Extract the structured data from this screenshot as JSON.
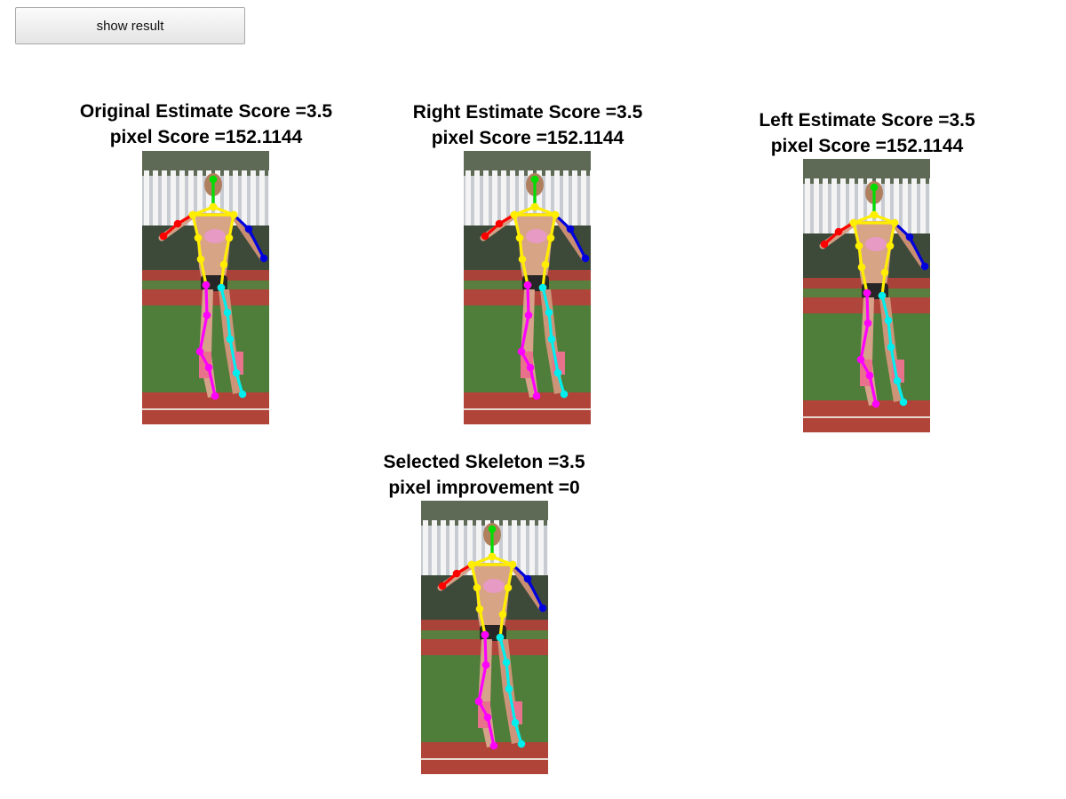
{
  "toolbar": {
    "show_result_label": "show result"
  },
  "panels": [
    {
      "id": "original",
      "title": "Original Estimate Score =3.5",
      "subtitle": "pixel Score =152.1144"
    },
    {
      "id": "right",
      "title": "Right Estimate Score =3.5",
      "subtitle": "pixel Score =152.1144"
    },
    {
      "id": "left",
      "title": "Left Estimate Score =3.5",
      "subtitle": "pixel Score =152.1144"
    },
    {
      "id": "selected",
      "title": "Selected Skeleton =3.5",
      "subtitle": "pixel improvement =0"
    }
  ],
  "skeleton_colors": {
    "head": "#00dd00",
    "torso": "#ffee00",
    "right_arm": "#ff0000",
    "left_arm": "#0000dd",
    "right_leg": "#ff00ff",
    "left_leg": "#00eeee"
  }
}
